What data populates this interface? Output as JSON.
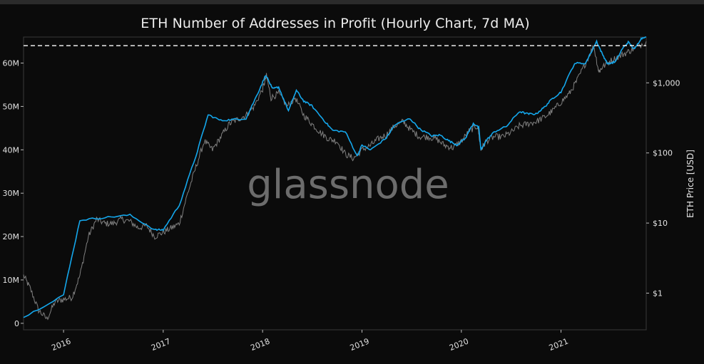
{
  "colors": {
    "background": "#0b0b0b",
    "plot_border": "#3a3a3a",
    "addresses_line": "#7f7f7f",
    "price_line": "#14a7ec",
    "ath_dashed_line": "#ffffff",
    "text": "#e6e6e6"
  },
  "watermark": "glassnode",
  "chart_data": {
    "type": "line",
    "title": "ETH Number of Addresses in Profit (Hourly Chart, 7d MA)",
    "xlabel": "",
    "ylabel_left": "",
    "ylabel_right": "ETH Price [USD]",
    "x_ticks": [
      "2016",
      "2017",
      "2018",
      "2019",
      "2020",
      "2021"
    ],
    "y_left_ticks": [
      "0",
      "10M",
      "20M",
      "30M",
      "40M",
      "50M",
      "60M"
    ],
    "y_left_range": [
      -1500000,
      66000000
    ],
    "y_right_ticks": [
      "$1",
      "$10",
      "$100",
      "$1,000"
    ],
    "y_right_scale": "log",
    "y_right_range": [
      0.3,
      4500
    ],
    "x_range": [
      "2015-08-07",
      "2021-11-10"
    ],
    "grid": false,
    "legend": "none",
    "reference_line": {
      "label": "",
      "style": "dashed",
      "value": 65000000
    },
    "series": [
      {
        "axis": "left",
        "x": [
          "2015-08-07",
          "2015-09-01",
          "2015-10-01",
          "2015-11-01",
          "2015-12-01",
          "2016-01-01",
          "2016-02-01",
          "2016-03-01",
          "2016-04-01",
          "2016-05-01",
          "2016-06-01",
          "2016-07-01",
          "2016-08-01",
          "2016-09-01",
          "2016-10-01",
          "2016-11-01",
          "2016-12-01",
          "2017-01-01",
          "2017-02-01",
          "2017-03-01",
          "2017-04-01",
          "2017-05-01",
          "2017-06-01",
          "2017-07-01",
          "2017-08-01",
          "2017-09-01",
          "2017-10-01",
          "2017-11-01",
          "2017-12-01",
          "2018-01-01",
          "2018-01-15",
          "2018-02-01",
          "2018-03-01",
          "2018-04-01",
          "2018-05-01",
          "2018-06-01",
          "2018-07-01",
          "2018-08-01",
          "2018-09-01",
          "2018-10-01",
          "2018-11-01",
          "2018-12-01",
          "2019-01-01",
          "2019-02-01",
          "2019-03-01",
          "2019-04-01",
          "2019-05-01",
          "2019-06-01",
          "2019-07-01",
          "2019-08-01",
          "2019-09-01",
          "2019-10-01",
          "2019-11-01",
          "2019-12-01",
          "2020-01-01",
          "2020-02-01",
          "2020-03-01",
          "2020-03-13",
          "2020-04-01",
          "2020-05-01",
          "2020-06-01",
          "2020-07-01",
          "2020-08-01",
          "2020-09-01",
          "2020-10-01",
          "2020-11-01",
          "2020-12-01",
          "2021-01-01",
          "2021-02-01",
          "2021-03-01",
          "2021-04-01",
          "2021-05-01",
          "2021-05-20",
          "2021-06-01",
          "2021-07-01",
          "2021-08-01",
          "2021-09-01",
          "2021-10-01",
          "2021-11-10"
        ],
        "values": [
          11000000,
          8000000,
          3000000,
          1000000,
          5000000,
          5500000,
          6000000,
          11000000,
          20000000,
          24000000,
          23000000,
          23000000,
          24000000,
          23500000,
          22000000,
          22500000,
          20000000,
          21000000,
          22000000,
          23000000,
          30000000,
          36000000,
          42000000,
          40000000,
          43000000,
          46000000,
          47000000,
          48000000,
          50000000,
          54000000,
          57000000,
          52000000,
          53000000,
          50000000,
          52000000,
          48000000,
          46000000,
          44000000,
          42500000,
          42000000,
          39000000,
          38000000,
          40000000,
          41000000,
          42500000,
          43500000,
          45500000,
          46500000,
          44500000,
          43000000,
          43000000,
          42500000,
          41000000,
          40500000,
          42000000,
          44500000,
          45500000,
          40000000,
          42000000,
          43000000,
          43000000,
          44000000,
          45500000,
          46000000,
          46500000,
          47500000,
          49000000,
          51000000,
          53000000,
          56000000,
          60000000,
          64000000,
          58000000,
          59000000,
          60500000,
          61500000,
          62500000,
          63500000,
          65000000
        ]
      },
      {
        "axis": "right",
        "x": [
          "2015-08-07",
          "2016-01-01",
          "2016-03-01",
          "2016-06-01",
          "2016-09-01",
          "2016-12-01",
          "2017-01-01",
          "2017-03-01",
          "2017-05-01",
          "2017-06-15",
          "2017-08-01",
          "2017-09-15",
          "2017-11-01",
          "2017-12-15",
          "2018-01-13",
          "2018-02-06",
          "2018-03-01",
          "2018-04-06",
          "2018-05-05",
          "2018-06-01",
          "2018-07-01",
          "2018-08-15",
          "2018-09-15",
          "2018-11-01",
          "2018-12-15",
          "2019-01-01",
          "2019-02-01",
          "2019-04-01",
          "2019-05-01",
          "2019-06-26",
          "2019-08-01",
          "2019-09-15",
          "2019-10-15",
          "2019-11-15",
          "2019-12-15",
          "2020-01-15",
          "2020-02-14",
          "2020-03-05",
          "2020-03-13",
          "2020-04-01",
          "2020-05-01",
          "2020-06-15",
          "2020-08-01",
          "2020-09-01",
          "2020-10-01",
          "2020-11-01",
          "2020-12-01",
          "2021-01-01",
          "2021-02-20",
          "2021-04-01",
          "2021-05-12",
          "2021-06-01",
          "2021-06-22",
          "2021-07-20",
          "2021-08-15",
          "2021-09-05",
          "2021-09-28",
          "2021-10-20",
          "2021-11-10"
        ],
        "values": [
          0.45,
          0.95,
          11,
          12,
          13,
          8,
          8,
          18,
          90,
          350,
          290,
          300,
          310,
          720,
          1300,
          820,
          870,
          400,
          780,
          550,
          470,
          290,
          210,
          200,
          90,
          130,
          110,
          165,
          250,
          310,
          220,
          175,
          180,
          150,
          130,
          160,
          265,
          230,
          110,
          150,
          200,
          240,
          390,
          360,
          360,
          450,
          600,
          740,
          1900,
          1900,
          3900,
          2600,
          1850,
          2000,
          3100,
          3800,
          3000,
          4200,
          4700
        ]
      }
    ]
  }
}
